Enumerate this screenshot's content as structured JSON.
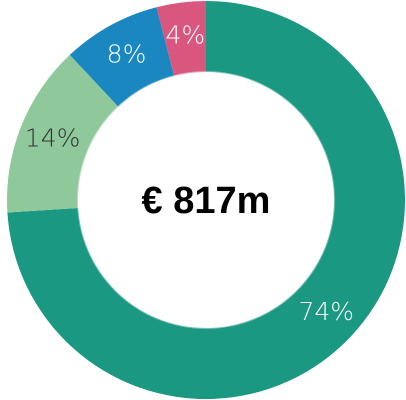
{
  "chart_data": {
    "type": "donut",
    "center_label": "€ 817m",
    "categories": [
      null,
      null,
      null,
      null
    ],
    "values": [
      74,
      14,
      8,
      4
    ],
    "value_labels": [
      "74%",
      "14%",
      "8%",
      "4%"
    ],
    "colors": [
      "#1a9882",
      "#8fc99b",
      "#1a87c0",
      "#d9577f"
    ],
    "label_colors": [
      "#ffffff",
      "#333333",
      "#ffffff",
      "#ffffff"
    ]
  }
}
